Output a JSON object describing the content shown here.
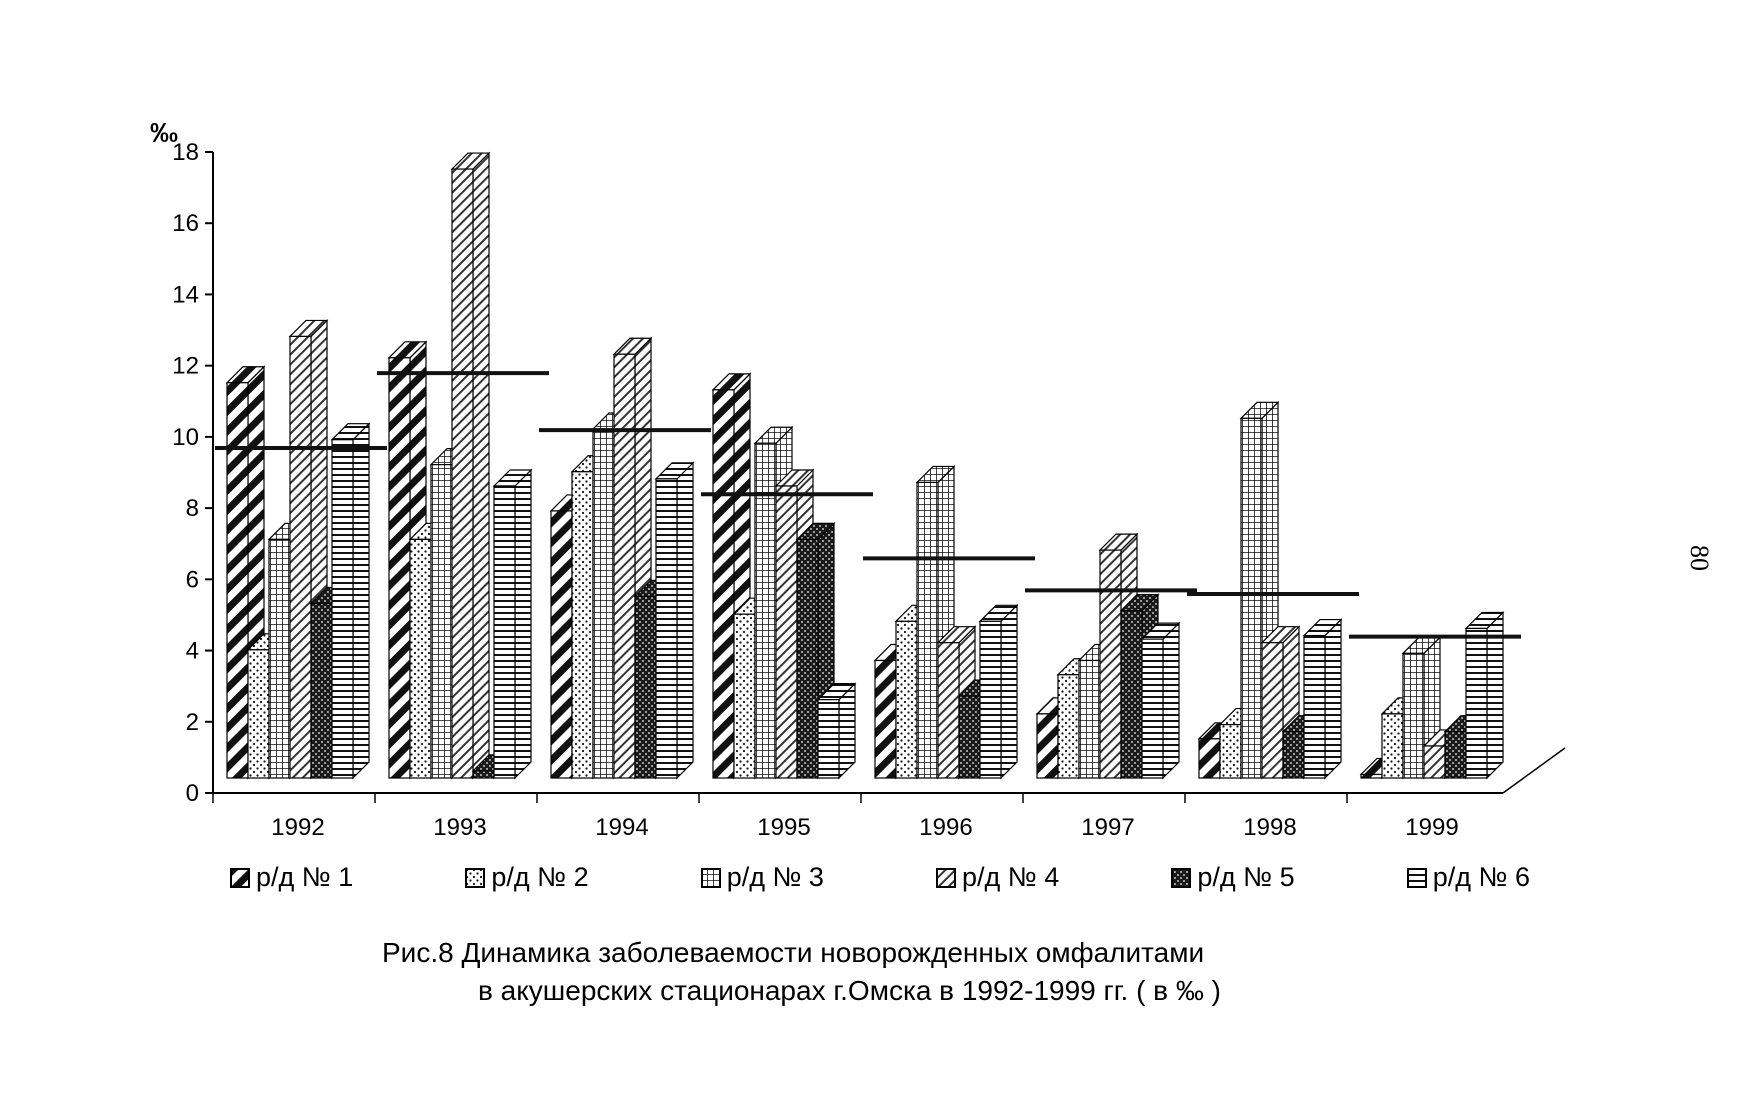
{
  "page_number": "80",
  "caption": {
    "line1": "Рис.8  Динамика заболеваемости новорожденных омфалитами",
    "line2": "в акушерских стационарах г.Омска в 1992-1999 гг. ( в ‰ )"
  },
  "chart_data": {
    "type": "bar",
    "ylabel": "‰",
    "ylim": [
      0,
      18
    ],
    "yticks": [
      "0",
      "2",
      "4",
      "6",
      "8",
      "10",
      "12",
      "14",
      "16",
      "18"
    ],
    "categories": [
      "1992",
      "1993",
      "1994",
      "1995",
      "1996",
      "1997",
      "1998",
      "1999"
    ],
    "series": [
      {
        "name": "р/д № 1",
        "pattern": "diagonal-bold",
        "values": [
          11.1,
          11.8,
          7.5,
          10.9,
          3.3,
          1.8,
          1.1,
          0.1
        ]
      },
      {
        "name": "р/д № 2",
        "pattern": "dots",
        "values": [
          3.6,
          6.7,
          8.6,
          4.6,
          4.4,
          2.9,
          1.5,
          1.8
        ]
      },
      {
        "name": "р/д № 3",
        "pattern": "grid",
        "values": [
          6.7,
          8.8,
          9.8,
          9.4,
          8.3,
          3.3,
          10.1,
          3.5
        ]
      },
      {
        "name": "р/д № 4",
        "pattern": "diagonal-light",
        "values": [
          12.4,
          17.1,
          11.9,
          8.2,
          3.8,
          6.4,
          3.8,
          0.9
        ]
      },
      {
        "name": "р/д № 5",
        "pattern": "dark-checker",
        "values": [
          4.9,
          0.2,
          5.1,
          6.7,
          2.3,
          4.7,
          1.3,
          1.3
        ]
      },
      {
        "name": "р/д № 6",
        "pattern": "horizontal-lines",
        "values": [
          9.5,
          8.2,
          8.4,
          2.2,
          4.4,
          3.9,
          4.0,
          4.2
        ]
      }
    ],
    "average": [
      9.1,
      11.2,
      9.6,
      7.8,
      6.0,
      5.1,
      5.0,
      3.8
    ],
    "legend_position": "bottom",
    "grid": false
  }
}
